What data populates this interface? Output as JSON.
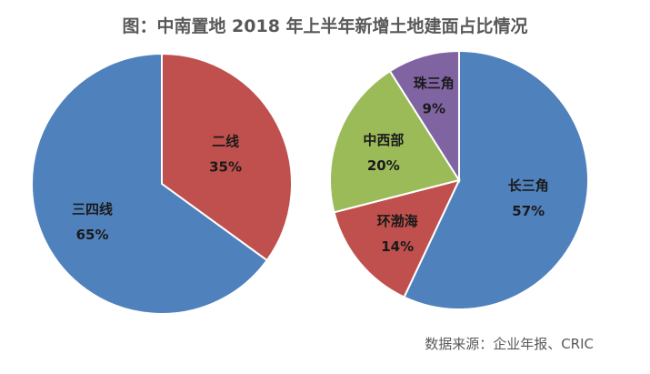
{
  "title": "图：中南置地 2018 年上半年新增土地建面占比情况",
  "source": "数据来源：企业年报、CRIC",
  "chart_data": [
    {
      "type": "pie",
      "slices": [
        {
          "label": "二线",
          "value": 35,
          "value_label": "35%",
          "color": "#C0504D"
        },
        {
          "label": "三四线",
          "value": 65,
          "value_label": "65%",
          "color": "#4F81BD"
        }
      ],
      "start": "12 o'clock",
      "direction": "clockwise"
    },
    {
      "type": "pie",
      "slices": [
        {
          "label": "长三角",
          "value": 57,
          "value_label": "57%",
          "color": "#4F81BD"
        },
        {
          "label": "环渤海",
          "value": 14,
          "value_label": "14%",
          "color": "#C0504D"
        },
        {
          "label": "中西部",
          "value": 20,
          "value_label": "20%",
          "color": "#9BBB59"
        },
        {
          "label": "珠三角",
          "value": 9,
          "value_label": "9%",
          "color": "#8064A2"
        }
      ],
      "start": "12 o'clock",
      "direction": "clockwise"
    }
  ]
}
